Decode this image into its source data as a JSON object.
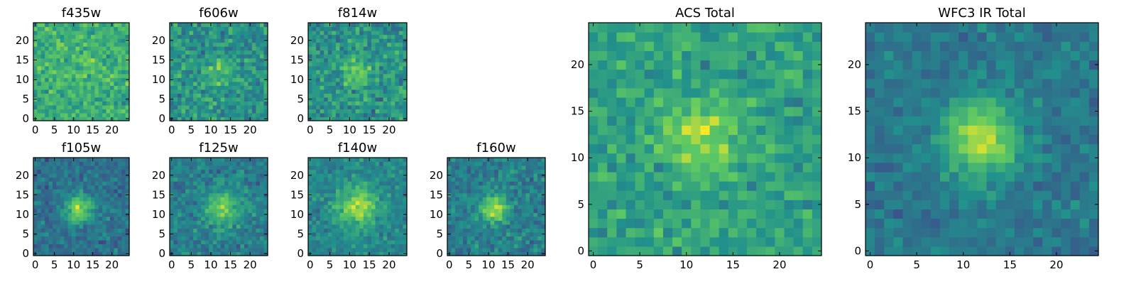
{
  "figure": {
    "background": "#ffffff"
  },
  "colormap": {
    "name": "viridis",
    "stops": [
      "#440154",
      "#3b528b",
      "#21918c",
      "#5ec962",
      "#fde725"
    ],
    "display_range": [
      0.3,
      1.0
    ]
  },
  "chart_data": [
    {
      "type": "heatmap",
      "title": "f435w",
      "grid_size": 25,
      "xlim": [
        0,
        24
      ],
      "ylim": [
        0,
        24
      ],
      "xticks": [
        0,
        5,
        10,
        15,
        20
      ],
      "yticks": [
        0,
        5,
        10,
        15,
        20
      ],
      "source_center": [
        12,
        12
      ],
      "source_sigma": 3.5,
      "source_amplitude": 0.05,
      "noise_level": 0.34,
      "base_level": 0.74,
      "seed": 11
    },
    {
      "type": "heatmap",
      "title": "f606w",
      "grid_size": 25,
      "xlim": [
        0,
        24
      ],
      "ylim": [
        0,
        24
      ],
      "xticks": [
        0,
        5,
        10,
        15,
        20
      ],
      "yticks": [
        0,
        5,
        10,
        15,
        20
      ],
      "source_center": [
        12,
        12
      ],
      "source_sigma": 2.5,
      "source_amplitude": 0.12,
      "noise_level": 0.38,
      "base_level": 0.66,
      "seed": 23
    },
    {
      "type": "heatmap",
      "title": "f814w",
      "grid_size": 25,
      "xlim": [
        0,
        24
      ],
      "ylim": [
        0,
        24
      ],
      "xticks": [
        0,
        5,
        10,
        15,
        20
      ],
      "yticks": [
        0,
        5,
        10,
        15,
        20
      ],
      "source_center": [
        12,
        12
      ],
      "source_sigma": 2.5,
      "source_amplitude": 0.18,
      "noise_level": 0.38,
      "base_level": 0.66,
      "seed": 37
    },
    {
      "type": "heatmap",
      "title": "f105w",
      "grid_size": 25,
      "xlim": [
        0,
        24
      ],
      "ylim": [
        0,
        24
      ],
      "xticks": [
        0,
        5,
        10,
        15,
        20
      ],
      "yticks": [
        0,
        5,
        10,
        15,
        20
      ],
      "source_center": [
        11.5,
        11.5
      ],
      "source_sigma": 2.6,
      "source_amplitude": 0.32,
      "noise_level": 0.28,
      "base_level": 0.56,
      "seed": 41
    },
    {
      "type": "heatmap",
      "title": "f125w",
      "grid_size": 25,
      "xlim": [
        0,
        24
      ],
      "ylim": [
        0,
        24
      ],
      "xticks": [
        0,
        5,
        10,
        15,
        20
      ],
      "yticks": [
        0,
        5,
        10,
        15,
        20
      ],
      "source_center": [
        13,
        11.5
      ],
      "source_sigma": 3.0,
      "source_amplitude": 0.25,
      "noise_level": 0.28,
      "base_level": 0.6,
      "seed": 53
    },
    {
      "type": "heatmap",
      "title": "f140w",
      "grid_size": 25,
      "xlim": [
        0,
        24
      ],
      "ylim": [
        0,
        24
      ],
      "xticks": [
        0,
        5,
        10,
        15,
        20
      ],
      "yticks": [
        0,
        5,
        10,
        15,
        20
      ],
      "source_center": [
        12,
        12
      ],
      "source_sigma": 3.6,
      "source_amplitude": 0.28,
      "noise_level": 0.26,
      "base_level": 0.62,
      "seed": 67
    },
    {
      "type": "heatmap",
      "title": "f160w",
      "grid_size": 25,
      "xlim": [
        0,
        24
      ],
      "ylim": [
        0,
        24
      ],
      "xticks": [
        0,
        5,
        10,
        15,
        20
      ],
      "yticks": [
        0,
        5,
        10,
        15,
        20
      ],
      "source_center": [
        11.5,
        11.5
      ],
      "source_sigma": 2.4,
      "source_amplitude": 0.32,
      "noise_level": 0.3,
      "base_level": 0.6,
      "seed": 79
    },
    {
      "type": "heatmap",
      "title": "ACS Total",
      "grid_size": 25,
      "xlim": [
        0,
        24
      ],
      "ylim": [
        0,
        24
      ],
      "xticks": [
        0,
        5,
        10,
        15,
        20
      ],
      "yticks": [
        0,
        5,
        10,
        15,
        20
      ],
      "source_center": [
        11.5,
        12
      ],
      "source_sigma": 2.8,
      "source_amplitude": 0.2,
      "noise_level": 0.3,
      "base_level": 0.7,
      "seed": 97
    },
    {
      "type": "heatmap",
      "title": "WFC3 IR Total",
      "grid_size": 25,
      "xlim": [
        0,
        24
      ],
      "ylim": [
        0,
        24
      ],
      "xticks": [
        0,
        5,
        10,
        15,
        20
      ],
      "yticks": [
        0,
        5,
        10,
        15,
        20
      ],
      "source_center": [
        12,
        12
      ],
      "source_sigma": 2.8,
      "source_amplitude": 0.35,
      "noise_level": 0.22,
      "base_level": 0.58,
      "seed": 113
    }
  ]
}
